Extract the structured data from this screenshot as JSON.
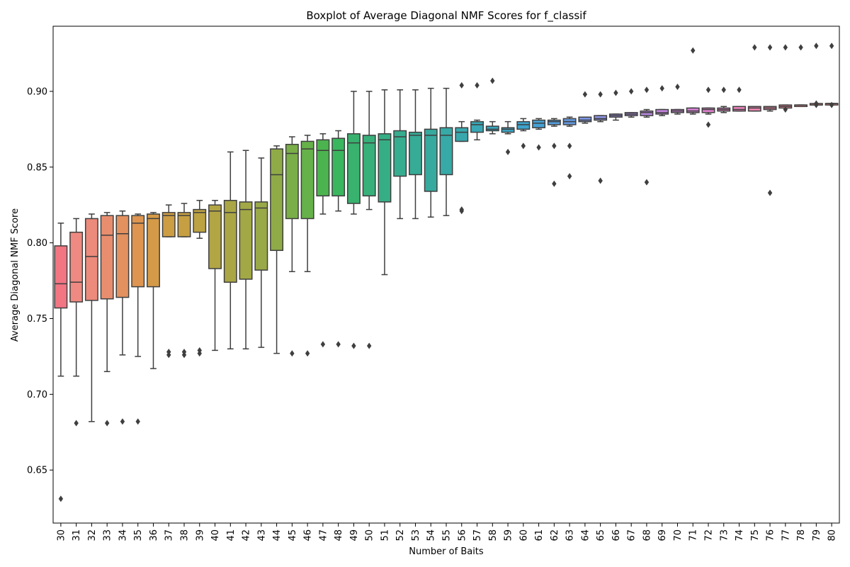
{
  "chart_data": {
    "type": "boxplot",
    "title": "Boxplot of Average Diagonal NMF Scores for f_classif",
    "xlabel": "Number of Baits",
    "ylabel": "Average Diagonal NMF Score",
    "ylim": [
      0.615,
      0.943
    ],
    "yticks": [
      0.65,
      0.7,
      0.75,
      0.8,
      0.85,
      0.9
    ],
    "ytick_labels": [
      "0.65",
      "0.70",
      "0.75",
      "0.80",
      "0.85",
      "0.90"
    ],
    "grid": false,
    "categories": [
      "30",
      "31",
      "32",
      "33",
      "34",
      "35",
      "36",
      "37",
      "38",
      "39",
      "40",
      "41",
      "42",
      "43",
      "44",
      "45",
      "46",
      "47",
      "48",
      "49",
      "50",
      "51",
      "52",
      "53",
      "54",
      "55",
      "56",
      "57",
      "58",
      "59",
      "60",
      "61",
      "62",
      "63",
      "64",
      "65",
      "66",
      "67",
      "68",
      "69",
      "70",
      "71",
      "72",
      "73",
      "74",
      "75",
      "76",
      "77",
      "78",
      "79",
      "80"
    ],
    "boxes": [
      {
        "q1": 0.757,
        "median": 0.773,
        "q3": 0.798,
        "whislo": 0.712,
        "whishi": 0.813,
        "fliers": [
          0.631
        ],
        "color": "#f27583"
      },
      {
        "q1": 0.761,
        "median": 0.774,
        "q3": 0.807,
        "whislo": 0.712,
        "whishi": 0.816,
        "fliers": [
          0.681
        ],
        "color": "#ee8a82"
      },
      {
        "q1": 0.762,
        "median": 0.791,
        "q3": 0.816,
        "whislo": 0.682,
        "whishi": 0.819,
        "fliers": [],
        "color": "#ec8a7b"
      },
      {
        "q1": 0.763,
        "median": 0.805,
        "q3": 0.818,
        "whislo": 0.715,
        "whishi": 0.82,
        "fliers": [
          0.681
        ],
        "color": "#e88e6f"
      },
      {
        "q1": 0.764,
        "median": 0.806,
        "q3": 0.818,
        "whislo": 0.726,
        "whishi": 0.821,
        "fliers": [
          0.682
        ],
        "color": "#e3915f"
      },
      {
        "q1": 0.771,
        "median": 0.813,
        "q3": 0.818,
        "whislo": 0.725,
        "whishi": 0.819,
        "fliers": [
          0.682
        ],
        "color": "#dd9551"
      },
      {
        "q1": 0.771,
        "median": 0.816,
        "q3": 0.819,
        "whislo": 0.717,
        "whishi": 0.82,
        "fliers": [],
        "color": "#d59a47"
      },
      {
        "q1": 0.804,
        "median": 0.818,
        "q3": 0.82,
        "whislo": 0.804,
        "whishi": 0.825,
        "fliers": [
          0.726,
          0.728
        ],
        "color": "#cd9d44"
      },
      {
        "q1": 0.804,
        "median": 0.818,
        "q3": 0.82,
        "whislo": 0.804,
        "whishi": 0.826,
        "fliers": [
          0.726,
          0.728
        ],
        "color": "#c59f42"
      },
      {
        "q1": 0.807,
        "median": 0.82,
        "q3": 0.822,
        "whislo": 0.803,
        "whishi": 0.828,
        "fliers": [
          0.727,
          0.729
        ],
        "color": "#bda243"
      },
      {
        "q1": 0.783,
        "median": 0.821,
        "q3": 0.825,
        "whislo": 0.729,
        "whishi": 0.828,
        "fliers": [],
        "color": "#b2a544"
      },
      {
        "q1": 0.774,
        "median": 0.82,
        "q3": 0.828,
        "whislo": 0.73,
        "whishi": 0.86,
        "fliers": [],
        "color": "#aaa645"
      },
      {
        "q1": 0.776,
        "median": 0.822,
        "q3": 0.827,
        "whislo": 0.73,
        "whishi": 0.861,
        "fliers": [],
        "color": "#a2a846"
      },
      {
        "q1": 0.782,
        "median": 0.823,
        "q3": 0.827,
        "whislo": 0.731,
        "whishi": 0.856,
        "fliers": [],
        "color": "#9aa948"
      },
      {
        "q1": 0.795,
        "median": 0.845,
        "q3": 0.862,
        "whislo": 0.727,
        "whishi": 0.864,
        "fliers": [],
        "color": "#8fab48"
      },
      {
        "q1": 0.816,
        "median": 0.859,
        "q3": 0.865,
        "whislo": 0.781,
        "whishi": 0.87,
        "fliers": [
          0.727
        ],
        "color": "#7aae48"
      },
      {
        "q1": 0.816,
        "median": 0.862,
        "q3": 0.867,
        "whislo": 0.781,
        "whishi": 0.871,
        "fliers": [
          0.727
        ],
        "color": "#66b14a"
      },
      {
        "q1": 0.831,
        "median": 0.861,
        "q3": 0.868,
        "whislo": 0.819,
        "whishi": 0.872,
        "fliers": [
          0.733
        ],
        "color": "#4cb44e"
      },
      {
        "q1": 0.831,
        "median": 0.861,
        "q3": 0.869,
        "whislo": 0.821,
        "whishi": 0.874,
        "fliers": [
          0.733
        ],
        "color": "#3ab65f"
      },
      {
        "q1": 0.826,
        "median": 0.866,
        "q3": 0.872,
        "whislo": 0.819,
        "whishi": 0.9,
        "fliers": [
          0.732
        ],
        "color": "#38b26e"
      },
      {
        "q1": 0.831,
        "median": 0.866,
        "q3": 0.871,
        "whislo": 0.822,
        "whishi": 0.9,
        "fliers": [
          0.732
        ],
        "color": "#37b07a"
      },
      {
        "q1": 0.827,
        "median": 0.868,
        "q3": 0.872,
        "whislo": 0.779,
        "whishi": 0.901,
        "fliers": [],
        "color": "#36ae85"
      },
      {
        "q1": 0.844,
        "median": 0.87,
        "q3": 0.874,
        "whislo": 0.816,
        "whishi": 0.901,
        "fliers": [],
        "color": "#36ad8e"
      },
      {
        "q1": 0.845,
        "median": 0.871,
        "q3": 0.873,
        "whislo": 0.816,
        "whishi": 0.901,
        "fliers": [],
        "color": "#36ab96"
      },
      {
        "q1": 0.834,
        "median": 0.871,
        "q3": 0.875,
        "whislo": 0.817,
        "whishi": 0.902,
        "fliers": [],
        "color": "#36aa9e"
      },
      {
        "q1": 0.845,
        "median": 0.871,
        "q3": 0.876,
        "whislo": 0.818,
        "whishi": 0.902,
        "fliers": [],
        "color": "#37a9a6"
      },
      {
        "q1": 0.867,
        "median": 0.873,
        "q3": 0.876,
        "whislo": 0.867,
        "whishi": 0.88,
        "fliers": [
          0.821,
          0.822,
          0.904
        ],
        "color": "#38a8ad"
      },
      {
        "q1": 0.873,
        "median": 0.878,
        "q3": 0.88,
        "whislo": 0.868,
        "whishi": 0.881,
        "fliers": [
          0.904
        ],
        "color": "#39a7b5"
      },
      {
        "q1": 0.874,
        "median": 0.875,
        "q3": 0.877,
        "whislo": 0.872,
        "whishi": 0.88,
        "fliers": [
          0.907
        ],
        "color": "#3aa6bc"
      },
      {
        "q1": 0.873,
        "median": 0.875,
        "q3": 0.876,
        "whislo": 0.872,
        "whishi": 0.88,
        "fliers": [
          0.86
        ],
        "color": "#3ca4c4"
      },
      {
        "q1": 0.875,
        "median": 0.878,
        "q3": 0.88,
        "whislo": 0.874,
        "whishi": 0.882,
        "fliers": [
          0.864
        ],
        "color": "#3ea3cc"
      },
      {
        "q1": 0.876,
        "median": 0.879,
        "q3": 0.881,
        "whislo": 0.875,
        "whishi": 0.882,
        "fliers": [
          0.863
        ],
        "color": "#45a1d4"
      },
      {
        "q1": 0.878,
        "median": 0.88,
        "q3": 0.881,
        "whislo": 0.877,
        "whishi": 0.882,
        "fliers": [
          0.864,
          0.839
        ],
        "color": "#539ddb"
      },
      {
        "q1": 0.878,
        "median": 0.88,
        "q3": 0.882,
        "whislo": 0.877,
        "whishi": 0.883,
        "fliers": [
          0.864,
          0.844
        ],
        "color": "#6599de"
      },
      {
        "q1": 0.88,
        "median": 0.881,
        "q3": 0.883,
        "whislo": 0.879,
        "whishi": 0.883,
        "fliers": [
          0.898
        ],
        "color": "#7a95e0"
      },
      {
        "q1": 0.881,
        "median": 0.882,
        "q3": 0.884,
        "whislo": 0.88,
        "whishi": 0.884,
        "fliers": [
          0.898,
          0.841
        ],
        "color": "#8c92e1"
      },
      {
        "q1": 0.883,
        "median": 0.884,
        "q3": 0.885,
        "whislo": 0.881,
        "whishi": 0.885,
        "fliers": [
          0.899
        ],
        "color": "#9c8fe1"
      },
      {
        "q1": 0.884,
        "median": 0.885,
        "q3": 0.886,
        "whislo": 0.883,
        "whishi": 0.886,
        "fliers": [
          0.9
        ],
        "color": "#aa8be0"
      },
      {
        "q1": 0.884,
        "median": 0.886,
        "q3": 0.887,
        "whislo": 0.883,
        "whishi": 0.888,
        "fliers": [
          0.901,
          0.84
        ],
        "color": "#b788de"
      },
      {
        "q1": 0.885,
        "median": 0.886,
        "q3": 0.888,
        "whislo": 0.884,
        "whishi": 0.888,
        "fliers": [
          0.902
        ],
        "color": "#c285dc"
      },
      {
        "q1": 0.886,
        "median": 0.887,
        "q3": 0.888,
        "whislo": 0.885,
        "whishi": 0.888,
        "fliers": [
          0.903
        ],
        "color": "#cc83d8"
      },
      {
        "q1": 0.886,
        "median": 0.887,
        "q3": 0.889,
        "whislo": 0.885,
        "whishi": 0.889,
        "fliers": [
          0.927
        ],
        "color": "#d582d3"
      },
      {
        "q1": 0.886,
        "median": 0.888,
        "q3": 0.889,
        "whislo": 0.885,
        "whishi": 0.889,
        "fliers": [
          0.901,
          0.878
        ],
        "color": "#dd81cc"
      },
      {
        "q1": 0.887,
        "median": 0.888,
        "q3": 0.889,
        "whislo": 0.886,
        "whishi": 0.89,
        "fliers": [
          0.901
        ],
        "color": "#e382c4"
      },
      {
        "q1": 0.887,
        "median": 0.888,
        "q3": 0.89,
        "whislo": 0.887,
        "whishi": 0.89,
        "fliers": [
          0.901
        ],
        "color": "#e884bb"
      },
      {
        "q1": 0.887,
        "median": 0.889,
        "q3": 0.89,
        "whislo": 0.887,
        "whishi": 0.89,
        "fliers": [
          0.929
        ],
        "color": "#ec86b1"
      },
      {
        "q1": 0.888,
        "median": 0.889,
        "q3": 0.89,
        "whislo": 0.887,
        "whishi": 0.89,
        "fliers": [
          0.929,
          0.833
        ],
        "color": "#ef88a6"
      },
      {
        "q1": 0.889,
        "median": 0.89,
        "q3": 0.891,
        "whislo": 0.889,
        "whishi": 0.891,
        "fliers": [
          0.929,
          0.888
        ],
        "color": "#f0899b"
      },
      {
        "q1": 0.89,
        "median": 0.891,
        "q3": 0.891,
        "whislo": 0.89,
        "whishi": 0.891,
        "fliers": [
          0.929
        ],
        "color": "#f18a91"
      },
      {
        "q1": 0.891,
        "median": 0.891,
        "q3": 0.892,
        "whislo": 0.891,
        "whishi": 0.892,
        "fliers": [
          0.93,
          0.891,
          0.892
        ],
        "color": "#f28b89"
      },
      {
        "q1": 0.891,
        "median": 0.892,
        "q3": 0.892,
        "whislo": 0.891,
        "whishi": 0.892,
        "fliers": [
          0.93,
          0.891
        ],
        "color": "#f28c82"
      }
    ]
  }
}
